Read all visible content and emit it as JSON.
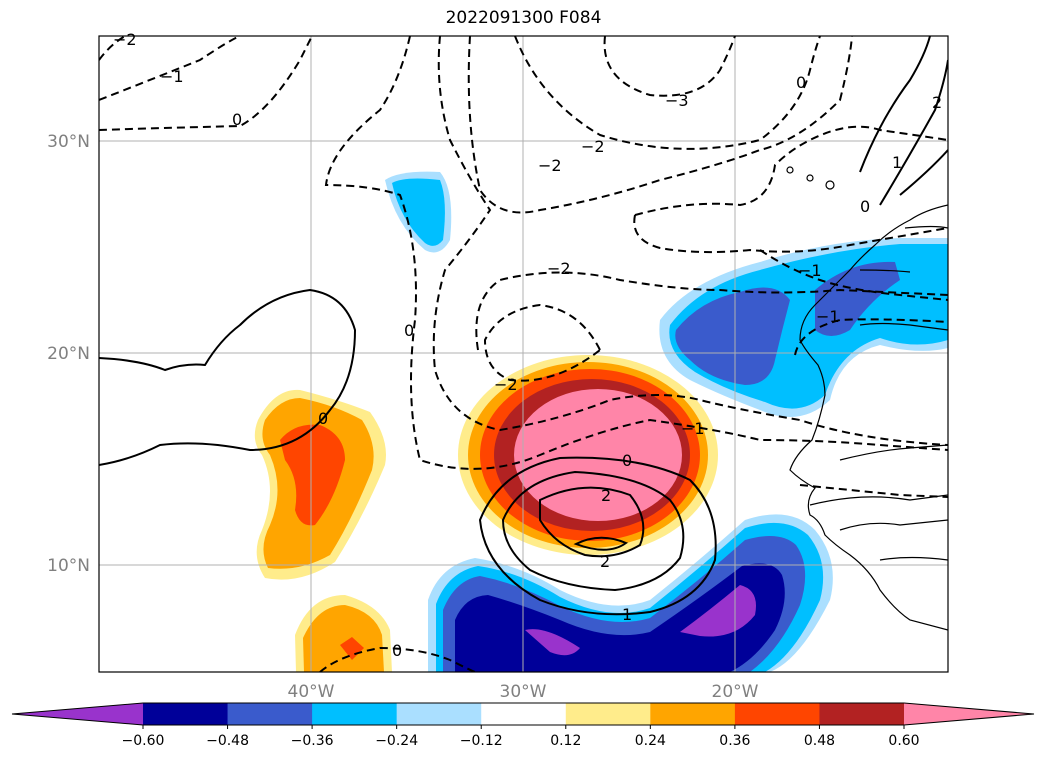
{
  "title": "2022091300 F084",
  "lat_labels": [
    "30°N",
    "20°N",
    "10°N"
  ],
  "lon_labels": [
    "40°W",
    "30°W",
    "20°W"
  ],
  "colorbar": {
    "colors": [
      "#9933cc",
      "#000099",
      "#3a5bcc",
      "#00bfff",
      "#aadfff",
      "#ffffff",
      "#ffec8b",
      "#ffa500",
      "#ff4500",
      "#b22222",
      "#ff85a8"
    ],
    "ticks": [
      "−0.60",
      "−0.48",
      "−0.36",
      "−0.24",
      "−0.12",
      "0.12",
      "0.24",
      "0.36",
      "0.48",
      "0.60"
    ]
  },
  "contour_labels": {
    "neg_a": "−2",
    "neg_b": "−1",
    "zero_a": "0",
    "neg_c": "−3",
    "neg_d": "−2",
    "neg_e": "−2",
    "zero_b": "0",
    "neg_f": "−2",
    "neg_g": "−2",
    "zero_c": "0",
    "neg_h": "−1",
    "zero_d": "0",
    "pos_a": "2",
    "pos_b": "2",
    "pos_c": "1",
    "zero_e": "0",
    "neg_i": "−1",
    "zero_f": "0",
    "pos_d": "1",
    "pos_e": "2",
    "zero_g": "0",
    "neg_j": "−1"
  }
}
